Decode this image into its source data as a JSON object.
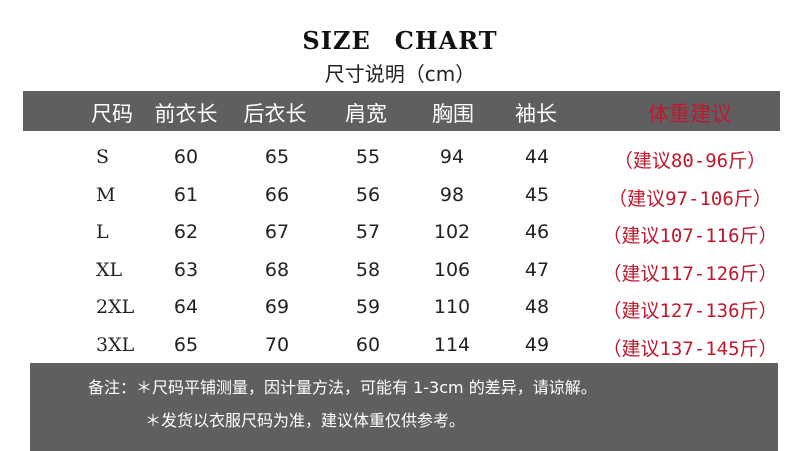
{
  "title_words": [
    "SIZE",
    "CHART"
  ],
  "subtitle": "尺寸说明（cm）",
  "header": [
    "尺码",
    "前衣长",
    "后衣长",
    "肩宽",
    "胸围",
    "袖长",
    "体重建议"
  ],
  "rows": [
    [
      "S",
      "60",
      "65",
      "55",
      "94",
      "44",
      "（建议80-96斤）"
    ],
    [
      "M",
      "61",
      "66",
      "56",
      "98",
      "45",
      "（建议97-106斤）"
    ],
    [
      "L",
      "62",
      "67",
      "57",
      "102",
      "46",
      "（建议107-116斤）"
    ],
    [
      "XL",
      "63",
      "68",
      "58",
      "106",
      "47",
      "（建议117-126斤）"
    ],
    [
      "2XL",
      "64",
      "69",
      "59",
      "110",
      "48",
      "（建议127-136斤）"
    ],
    [
      "3XL",
      "65",
      "70",
      "60",
      "114",
      "49",
      "（建议137-145斤）"
    ]
  ],
  "notes": [
    "备注：＊尺码平铺测量，因计量方法，可能有 1-3cm 的差异，请谅解。",
    "＊发货以衣服尺码为准，建议体重仅供参考。"
  ],
  "colors": {
    "header_bg": "#5f5f61",
    "accent_red": "#c0182c"
  }
}
